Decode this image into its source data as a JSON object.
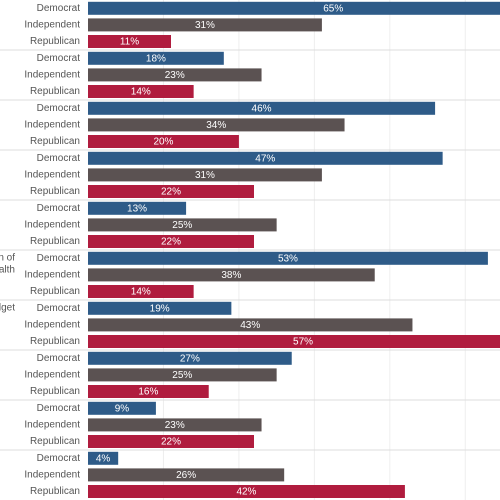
{
  "chart_data": {
    "type": "bar",
    "orientation": "horizontal",
    "group_labels": [
      null,
      null,
      null,
      null,
      null,
      [
        "n of",
        "alth"
      ],
      "dget",
      null,
      null,
      null
    ],
    "series": [
      {
        "name": "Democrat",
        "color": "#2e5b88",
        "values": [
          65,
          18,
          46,
          47,
          13,
          53,
          19,
          27,
          9,
          4
        ],
        "value_labels": [
          "65%",
          "18%",
          "46%",
          "47%",
          "13%",
          "53%",
          "19%",
          "27%",
          "9%",
          "4%"
        ]
      },
      {
        "name": "Independent",
        "color": "#5b5252",
        "values": [
          31,
          23,
          34,
          31,
          25,
          38,
          43,
          25,
          23,
          26
        ],
        "value_labels": [
          "31%",
          "23%",
          "34%",
          "31%",
          "25%",
          "38%",
          "43%",
          "25%",
          "23%",
          "26%"
        ]
      },
      {
        "name": "Republican",
        "color": "#b01c3e",
        "values": [
          11,
          14,
          20,
          22,
          22,
          14,
          57,
          16,
          22,
          42
        ],
        "value_labels": [
          "11%",
          "14%",
          "20%",
          "22%",
          "22%",
          "14%",
          "57%",
          "16%",
          "22%",
          "42%"
        ]
      }
    ],
    "xlim": [
      0,
      55
    ],
    "xgrid": [
      10,
      20,
      30,
      40,
      50
    ],
    "grid": true
  }
}
